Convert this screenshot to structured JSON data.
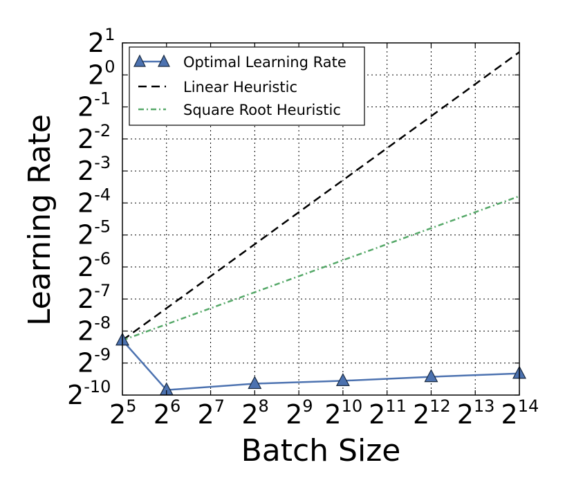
{
  "chart_data": {
    "type": "line",
    "xlabel": "Batch Size",
    "ylabel": "Learning Rate",
    "xscale": "log2",
    "yscale": "log2",
    "xlim": [
      32,
      16384
    ],
    "ylim": [
      0.0009765625,
      2
    ],
    "x_tick_exponents": [
      "5",
      "6",
      "7",
      "8",
      "9",
      "10",
      "11",
      "12",
      "13",
      "14"
    ],
    "y_tick_exponents": [
      "-10",
      "-9",
      "-8",
      "-7",
      "-6",
      "-5",
      "-4",
      "-3",
      "-2",
      "-1",
      "0",
      "1"
    ],
    "tick_base": "2",
    "grid": true,
    "legend_position": "top-left",
    "series": [
      {
        "name": "Optimal Learning Rate",
        "style": "solid-triangle-markers",
        "color": "#4c72b0",
        "x": [
          32,
          64,
          256,
          1024,
          4096,
          16384
        ],
        "y": [
          0.0032,
          0.00109,
          0.00125,
          0.00133,
          0.00145,
          0.00156
        ]
      },
      {
        "name": "Linear Heuristic",
        "style": "dashed",
        "color": "#000000",
        "x": [
          32,
          16384
        ],
        "y": [
          0.0032,
          1.6384
        ]
      },
      {
        "name": "Square Root Heuristic",
        "style": "dashdot",
        "color": "#55a868",
        "x": [
          32,
          16384
        ],
        "y": [
          0.0032,
          0.0724
        ]
      }
    ]
  }
}
